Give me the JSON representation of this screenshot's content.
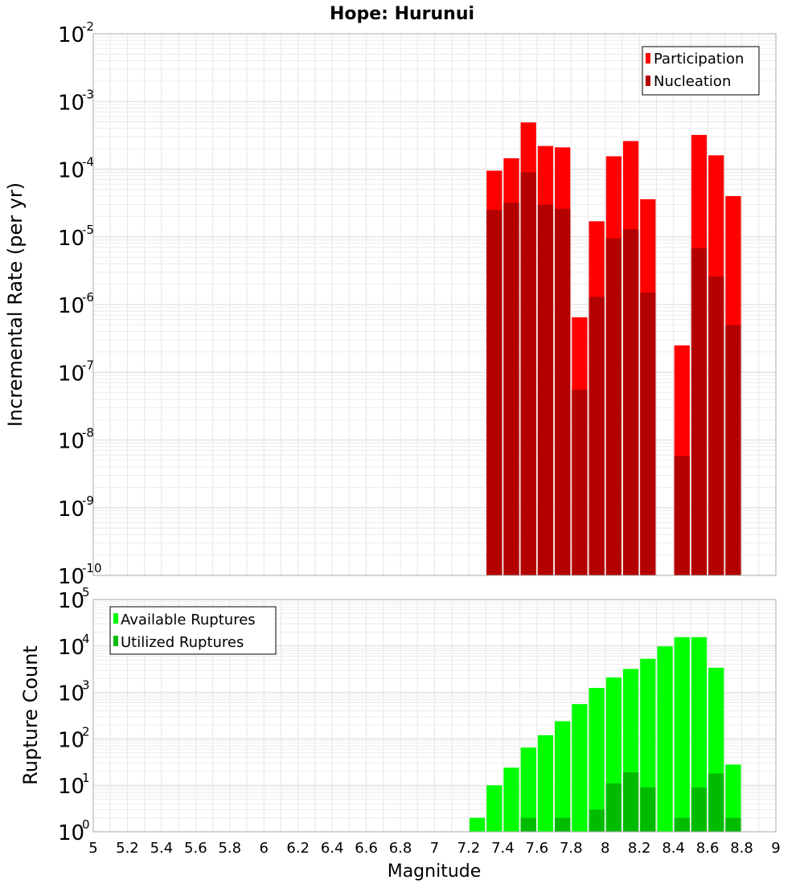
{
  "chart_data": [
    {
      "type": "bar",
      "title": "Hope: Hurunui",
      "xlabel": "",
      "ylabel": "Incremental Rate (per yr)",
      "yscale": "log",
      "xlim": [
        5,
        9
      ],
      "ylim": [
        1e-10,
        0.01
      ],
      "ytick_base": "10",
      "yticks_exp": [
        "-10",
        "-9",
        "-8",
        "-7",
        "-6",
        "-5",
        "-4",
        "-3",
        "-2"
      ],
      "grid": true,
      "legend_position": "top-right",
      "bin_width": 0.1,
      "x": [
        7.35,
        7.45,
        7.55,
        7.65,
        7.75,
        7.85,
        7.95,
        8.05,
        8.15,
        8.25,
        8.45,
        8.55,
        8.65,
        8.75
      ],
      "series": [
        {
          "name": "Participation",
          "color": "#ff0000",
          "values": [
            9.5e-05,
            0.000145,
            0.00049,
            0.00022,
            0.00021,
            6.5e-07,
            1.7e-05,
            0.000155,
            0.00026,
            3.6e-05,
            2.5e-07,
            0.00032,
            0.00016,
            4e-05
          ]
        },
        {
          "name": "Nucleation",
          "color": "#b30000",
          "values": [
            2.5e-05,
            3.2e-05,
            9e-05,
            3e-05,
            2.6e-05,
            5.5e-08,
            1.3e-06,
            9.5e-06,
            1.3e-05,
            1.5e-06,
            5.8e-09,
            6.8e-06,
            2.6e-06,
            5e-07
          ]
        }
      ]
    },
    {
      "type": "bar",
      "title": "",
      "xlabel": "Magnitude",
      "ylabel": "Rupture Count",
      "yscale": "log",
      "xlim": [
        5,
        9
      ],
      "ylim": [
        1,
        100000.0
      ],
      "ytick_base": "10",
      "yticks_exp": [
        "0",
        "1",
        "2",
        "3",
        "4",
        "5"
      ],
      "xticks": [
        "5",
        "5.2",
        "5.4",
        "5.6",
        "5.8",
        "6",
        "6.2",
        "6.4",
        "6.6",
        "6.8",
        "7",
        "7.2",
        "7.4",
        "7.6",
        "7.8",
        "8",
        "8.2",
        "8.4",
        "8.6",
        "8.8",
        "9"
      ],
      "grid": true,
      "legend_position": "top-left",
      "bin_width": 0.1,
      "x": [
        6.85,
        7.25,
        7.35,
        7.45,
        7.55,
        7.65,
        7.75,
        7.85,
        7.95,
        8.05,
        8.15,
        8.25,
        8.35,
        8.45,
        8.55,
        8.65,
        8.75
      ],
      "series": [
        {
          "name": "Available Ruptures",
          "color": "#00ff00",
          "values": [
            1,
            2,
            10,
            24,
            65,
            120,
            240,
            560,
            1250,
            2100,
            3200,
            5300,
            9800,
            15500,
            15500,
            3400,
            28
          ]
        },
        {
          "name": "Utilized Ruptures",
          "color": "#00bb00",
          "values": [
            0,
            0,
            1,
            1,
            2,
            1,
            2,
            1,
            3,
            11,
            19,
            9,
            0,
            2,
            9,
            18,
            2
          ]
        }
      ]
    }
  ]
}
